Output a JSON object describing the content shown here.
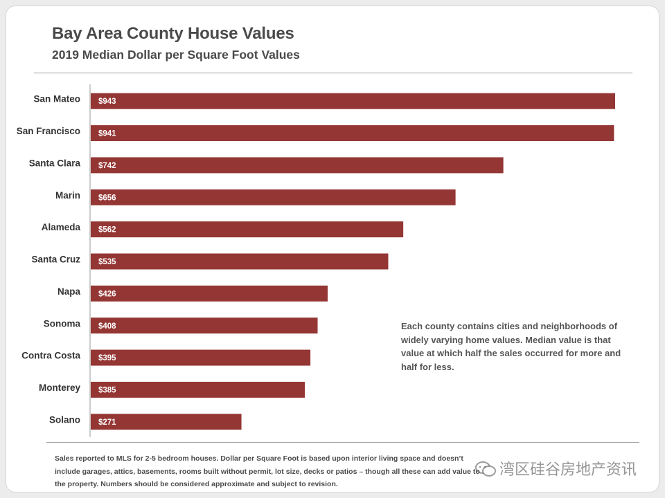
{
  "colors": {
    "bar": "#943634",
    "axis": "#9a9a9a",
    "text": "#333333"
  },
  "footnote": "Sales reported to MLS for 2-5 bedroom houses. Dollar per Square Foot is based upon interior living space and doesn’t include garages, attics, basements, rooms built without permit, lot size, decks or patios – though all these can add value to the property. Numbers should be considered approximate and subject to revision.",
  "note": "Each county contains cities and neighborhoods of widely varying home values. Median value is that value at which half the sales occurred for more and half for less.",
  "watermark": {
    "icon": "wechat-icon",
    "text": "湾区硅谷房地产资讯"
  },
  "chart_data": {
    "type": "bar",
    "orientation": "horizontal",
    "title": "Bay Area County House Values",
    "subtitle": "2019 Median Dollar per Square Foot Values",
    "xlabel": "",
    "ylabel": "",
    "xlim": [
      0,
      950
    ],
    "value_prefix": "$",
    "categories": [
      "San Mateo",
      "San Francisco",
      "Santa Clara",
      "Marin",
      "Alameda",
      "Santa Cruz",
      "Napa",
      "Sonoma",
      "Contra Costa",
      "Monterey",
      "Solano"
    ],
    "values": [
      943,
      941,
      742,
      656,
      562,
      535,
      426,
      408,
      395,
      385,
      271
    ],
    "data_labels": [
      "$943",
      "$941",
      "$742",
      "$656",
      "$562",
      "$535",
      "$426",
      "$408",
      "$395",
      "$385",
      "$271"
    ],
    "grid": false,
    "legend": "none"
  }
}
